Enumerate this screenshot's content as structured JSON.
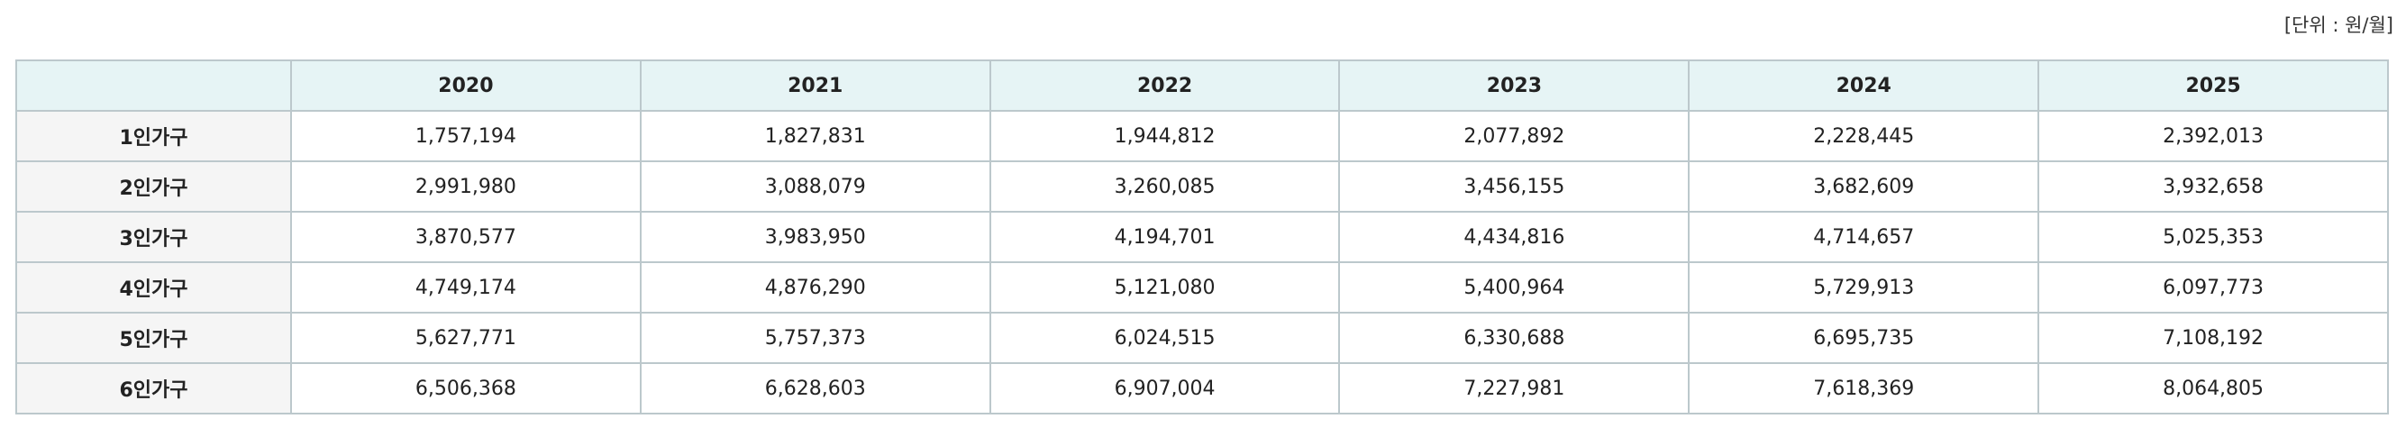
{
  "unit": "[단위 : 원/월]",
  "table": {
    "header": [
      "2020",
      "2021",
      "2022",
      "2023",
      "2024",
      "2025"
    ],
    "rows": [
      {
        "label": "1인가구",
        "values": [
          "1,757,194",
          "1,827,831",
          "1,944,812",
          "2,077,892",
          "2,228,445",
          "2,392,013"
        ]
      },
      {
        "label": "2인가구",
        "values": [
          "2,991,980",
          "3,088,079",
          "3,260,085",
          "3,456,155",
          "3,682,609",
          "3,932,658"
        ]
      },
      {
        "label": "3인가구",
        "values": [
          "3,870,577",
          "3,983,950",
          "4,194,701",
          "4,434,816",
          "4,714,657",
          "5,025,353"
        ]
      },
      {
        "label": "4인가구",
        "values": [
          "4,749,174",
          "4,876,290",
          "5,121,080",
          "5,400,964",
          "5,729,913",
          "6,097,773"
        ]
      },
      {
        "label": "5인가구",
        "values": [
          "5,627,771",
          "5,757,373",
          "6,024,515",
          "6,330,688",
          "6,695,735",
          "7,108,192"
        ]
      },
      {
        "label": "6인가구",
        "values": [
          "6,506,368",
          "6,628,603",
          "6,907,004",
          "7,227,981",
          "7,618,369",
          "8,064,805"
        ]
      }
    ]
  }
}
